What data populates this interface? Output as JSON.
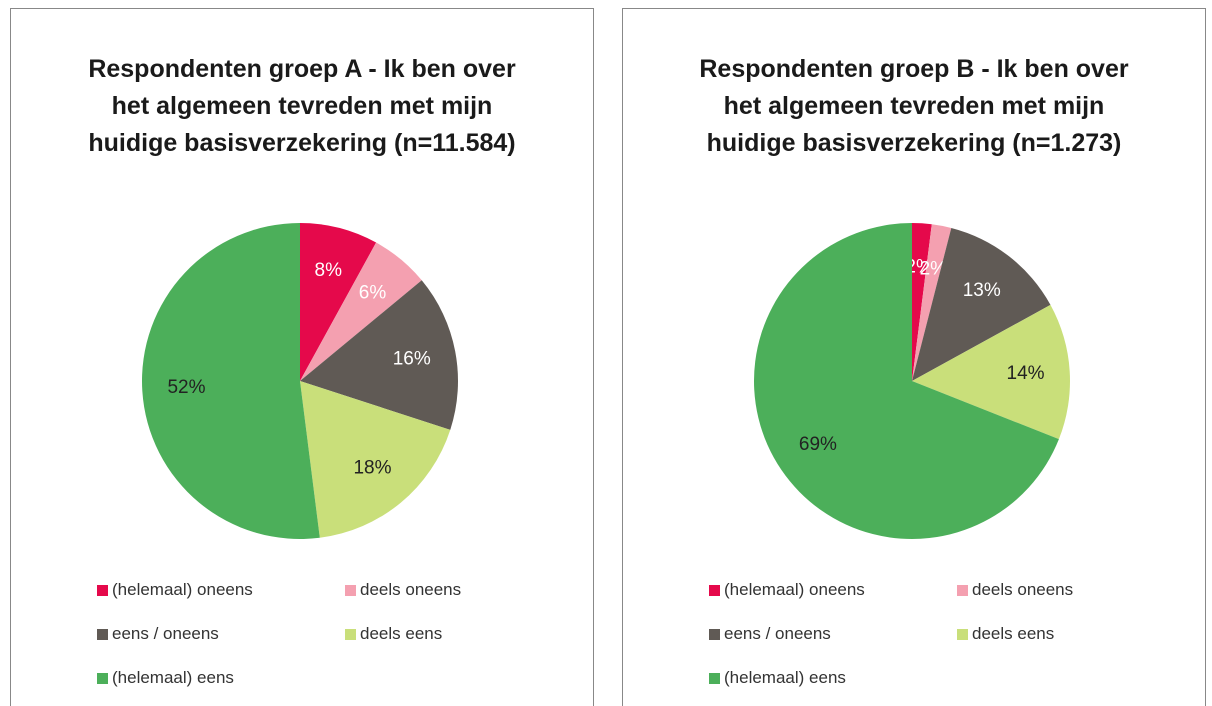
{
  "chart_data": [
    {
      "type": "pie",
      "title": "Respondenten groep A - Ik ben over het algemeen tevreden met mijn huidige basisverzekering (n=11.584)",
      "categories": [
        "(helemaal) oneens",
        "deels oneens",
        "eens / oneens",
        "deels eens",
        "(helemaal) eens"
      ],
      "values": [
        8,
        6,
        16,
        18,
        52
      ],
      "value_labels": [
        "8%",
        "6%",
        "16%",
        "18%",
        "52%"
      ],
      "colors": [
        "#e5094b",
        "#f4a0b0",
        "#605a55",
        "#c9df7a",
        "#4caf5a"
      ],
      "legend": "bottom"
    },
    {
      "type": "pie",
      "title": "Respondenten groep B - Ik ben over het algemeen tevreden met mijn huidige basisverzekering (n=1.273)",
      "categories": [
        "(helemaal) oneens",
        "deels oneens",
        "eens / oneens",
        "deels eens",
        "(helemaal) eens"
      ],
      "values": [
        2,
        2,
        13,
        14,
        69
      ],
      "value_labels": [
        "2%",
        "2%",
        "13%",
        "14%",
        "69%"
      ],
      "colors": [
        "#e5094b",
        "#f4a0b0",
        "#605a55",
        "#c9df7a",
        "#4caf5a"
      ],
      "legend": "bottom"
    }
  ]
}
